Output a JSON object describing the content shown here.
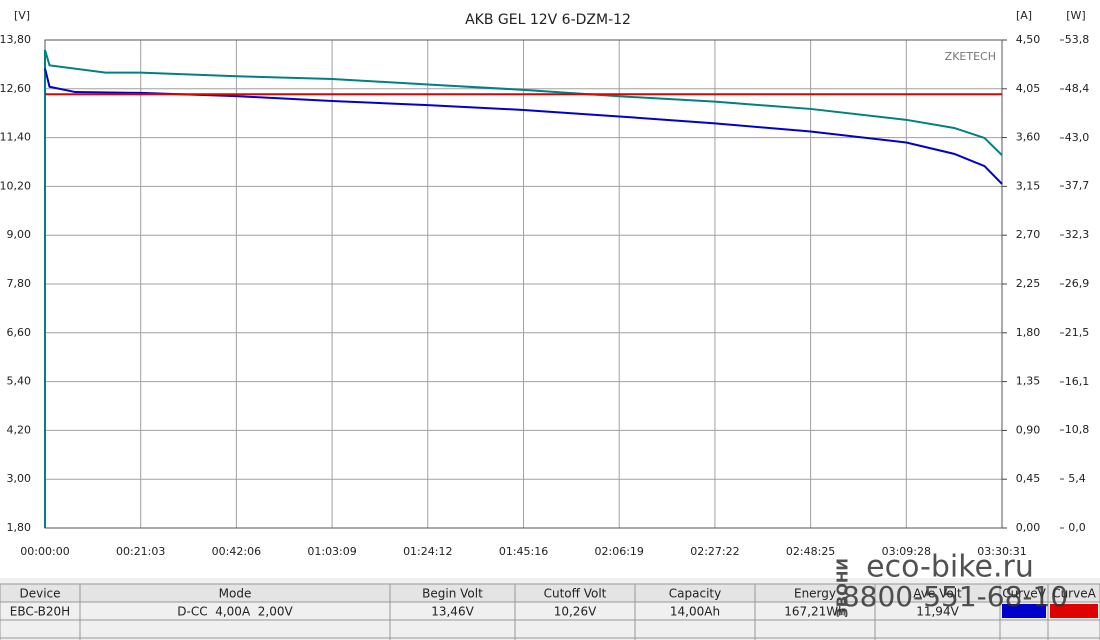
{
  "chart_data": {
    "type": "line",
    "title": "AKB GEL 12V 6-DZM-12",
    "brand": "ZKETECH",
    "y_label": "[V]",
    "y2_label": "[A]",
    "y3_label": "[W]",
    "xlim": [
      0,
      12631
    ],
    "xticks": [
      {
        "value": 0,
        "label": "00:00:00"
      },
      {
        "value": 1263,
        "label": "00:21:03"
      },
      {
        "value": 2526,
        "label": "00:42:06"
      },
      {
        "value": 3789,
        "label": "01:03:09"
      },
      {
        "value": 5052,
        "label": "01:24:12"
      },
      {
        "value": 6316,
        "label": "01:45:16"
      },
      {
        "value": 7579,
        "label": "02:06:19"
      },
      {
        "value": 8842,
        "label": "02:27:22"
      },
      {
        "value": 10105,
        "label": "02:48:25"
      },
      {
        "value": 11368,
        "label": "03:09:28"
      },
      {
        "value": 12631,
        "label": "03:30:31"
      }
    ],
    "ylim": [
      1.8,
      13.8
    ],
    "yticks": [
      {
        "value": 1.8,
        "label": "1,80"
      },
      {
        "value": 3.0,
        "label": "3,00"
      },
      {
        "value": 4.2,
        "label": "4,20"
      },
      {
        "value": 5.4,
        "label": "5,40"
      },
      {
        "value": 6.6,
        "label": "6,60"
      },
      {
        "value": 7.8,
        "label": "7,80"
      },
      {
        "value": 9.0,
        "label": "9,00"
      },
      {
        "value": 10.2,
        "label": "10,20"
      },
      {
        "value": 11.4,
        "label": "11,40"
      },
      {
        "value": 12.6,
        "label": "12,60"
      },
      {
        "value": 13.8,
        "label": "13,80"
      }
    ],
    "y2lim": [
      0,
      4.5
    ],
    "y2ticks": [
      {
        "value": 0,
        "label": "0,00"
      },
      {
        "value": 0.45,
        "label": "0,45"
      },
      {
        "value": 0.9,
        "label": "0,90"
      },
      {
        "value": 1.35,
        "label": "1,35"
      },
      {
        "value": 1.8,
        "label": "1,80"
      },
      {
        "value": 2.25,
        "label": "2,25"
      },
      {
        "value": 2.7,
        "label": "2,70"
      },
      {
        "value": 3.15,
        "label": "3,15"
      },
      {
        "value": 3.6,
        "label": "3,60"
      },
      {
        "value": 4.05,
        "label": "4,05"
      },
      {
        "value": 4.5,
        "label": "4,50"
      }
    ],
    "y3lim": [
      0,
      53.8
    ],
    "y3ticks": [
      {
        "value": 0,
        "label": "0,0"
      },
      {
        "value": 5.4,
        "label": "5,4"
      },
      {
        "value": 10.8,
        "label": "10,8"
      },
      {
        "value": 16.1,
        "label": "16,1"
      },
      {
        "value": 21.5,
        "label": "21,5"
      },
      {
        "value": 26.9,
        "label": "26,9"
      },
      {
        "value": 32.3,
        "label": "32,3"
      },
      {
        "value": 37.7,
        "label": "37,7"
      },
      {
        "value": 43.0,
        "label": "43,0"
      },
      {
        "value": 48.4,
        "label": "48,4"
      },
      {
        "value": 53.8,
        "label": "53,8"
      }
    ],
    "grid": true,
    "series": [
      {
        "color": "#008080",
        "axis": "y3",
        "x": [
          0,
          0,
          60,
          800,
          1263,
          2526,
          3789,
          5052,
          6316,
          7579,
          8842,
          10105,
          11368,
          12000,
          12400,
          12631
        ],
        "values": [
          0,
          52.7,
          51.0,
          50.2,
          50.2,
          49.8,
          49.5,
          48.9,
          48.3,
          47.6,
          47.0,
          46.2,
          45.0,
          44.1,
          43.0,
          41.1
        ]
      },
      {
        "color": "#0000cc",
        "axis": "y",
        "x": [
          0,
          60,
          400,
          1263,
          2526,
          3789,
          5052,
          6316,
          7579,
          8842,
          10105,
          11368,
          12000,
          12400,
          12631
        ],
        "values": [
          13.1,
          12.65,
          12.52,
          12.5,
          12.42,
          12.3,
          12.2,
          12.08,
          11.92,
          11.75,
          11.55,
          11.28,
          11.0,
          10.7,
          10.26
        ]
      },
      {
        "color": "#e00000",
        "axis": "y2",
        "x": [
          0,
          12631
        ],
        "values": [
          4.0,
          4.0
        ]
      }
    ]
  },
  "table": {
    "headers": [
      "Device",
      "Mode",
      "Begin Volt",
      "Cutoff Volt",
      "Capacity",
      "Energy",
      "Ave Volt",
      "CurveV",
      "CurveA"
    ],
    "rows": [
      [
        "EBC-B20H",
        "D-CC  4,00A  2,00V",
        "13,46V",
        "10,26V",
        "14,00Ah",
        "167,21Wh",
        "11,94V"
      ]
    ]
  },
  "watermark": {
    "call": "ЗВОНИ",
    "site": "eco-bike.ru",
    "phone": "8800-551-68-10"
  }
}
